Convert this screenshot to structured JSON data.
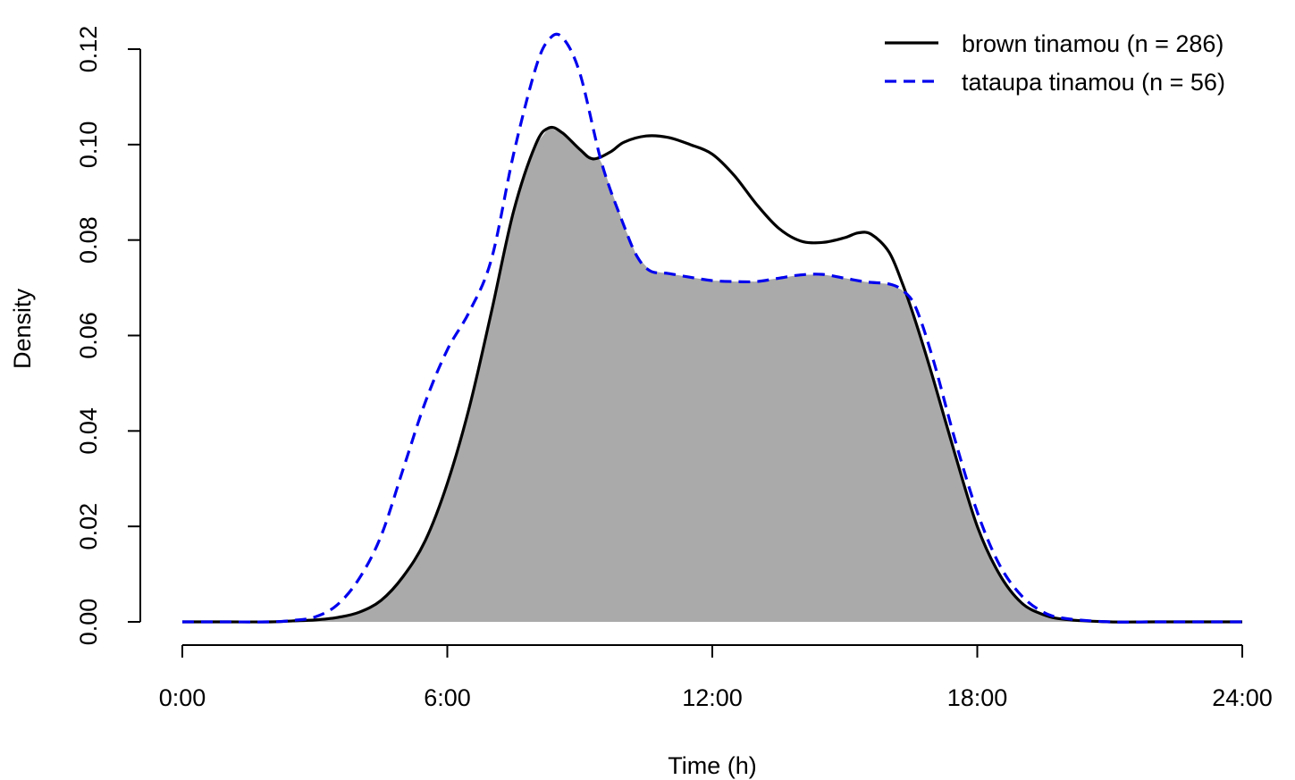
{
  "chart_data": {
    "type": "area",
    "xlabel": "Time (h)",
    "ylabel": "Density",
    "xlim": [
      0,
      24
    ],
    "ylim": [
      0,
      0.12
    ],
    "x_ticks": [
      0,
      6,
      12,
      18,
      24
    ],
    "x_tick_labels": [
      "0:00",
      "6:00",
      "12:00",
      "18:00",
      "24:00"
    ],
    "y_ticks": [
      0.0,
      0.02,
      0.04,
      0.06,
      0.08,
      0.1,
      0.12
    ],
    "y_tick_labels": [
      "0.00",
      "0.02",
      "0.04",
      "0.06",
      "0.08",
      "0.10",
      "0.12"
    ],
    "grid": false,
    "legend_position": "top-right",
    "overlap_fill_color": "#aaaaaa",
    "series": [
      {
        "name": "brown tinamou (n = 286)",
        "color": "#000000",
        "line_style": "solid",
        "x": [
          0,
          1,
          2,
          2.5,
          3,
          3.5,
          4,
          4.5,
          5,
          5.5,
          6,
          6.5,
          7,
          7.5,
          8,
          8.3,
          8.6,
          9,
          9.3,
          9.7,
          10,
          10.5,
          11,
          11.5,
          12,
          12.5,
          13,
          13.5,
          14,
          14.5,
          15,
          15.3,
          15.6,
          16,
          16.3,
          16.6,
          17,
          17.5,
          18,
          18.5,
          19,
          19.5,
          20,
          21,
          22,
          23,
          24
        ],
        "y": [
          0,
          0,
          0,
          0.0002,
          0.0004,
          0.0009,
          0.002,
          0.0045,
          0.0095,
          0.017,
          0.029,
          0.045,
          0.065,
          0.086,
          0.1,
          0.1035,
          0.1025,
          0.099,
          0.097,
          0.0985,
          0.1005,
          0.1018,
          0.1015,
          0.1,
          0.098,
          0.0935,
          0.0875,
          0.0825,
          0.0798,
          0.0795,
          0.0805,
          0.0815,
          0.0812,
          0.0775,
          0.071,
          0.063,
          0.051,
          0.035,
          0.02,
          0.01,
          0.004,
          0.0015,
          0.0005,
          0,
          0,
          0,
          0
        ]
      },
      {
        "name": "tataupa tinamou (n = 56)",
        "color": "#0000ee",
        "line_style": "dashed",
        "x": [
          0,
          1,
          2,
          2.5,
          3,
          3.5,
          4,
          4.5,
          5,
          5.5,
          6,
          6.5,
          7,
          7.5,
          8,
          8.3,
          8.6,
          9,
          9.5,
          10,
          10.3,
          10.6,
          11,
          11.5,
          12,
          12.5,
          13,
          13.5,
          14,
          14.5,
          15,
          15.5,
          16,
          16.3,
          16.6,
          17,
          17.5,
          18,
          18.5,
          19,
          19.5,
          20,
          21,
          22,
          23,
          24
        ],
        "y": [
          0,
          0,
          0,
          0.0003,
          0.001,
          0.0035,
          0.009,
          0.018,
          0.032,
          0.046,
          0.057,
          0.065,
          0.076,
          0.098,
          0.116,
          0.122,
          0.1225,
          0.115,
          0.096,
          0.083,
          0.0765,
          0.0735,
          0.073,
          0.0722,
          0.0715,
          0.0713,
          0.0713,
          0.072,
          0.0727,
          0.0728,
          0.072,
          0.0712,
          0.0708,
          0.0695,
          0.066,
          0.055,
          0.038,
          0.023,
          0.012,
          0.0055,
          0.002,
          0.0007,
          0,
          0,
          0,
          0
        ]
      }
    ]
  }
}
